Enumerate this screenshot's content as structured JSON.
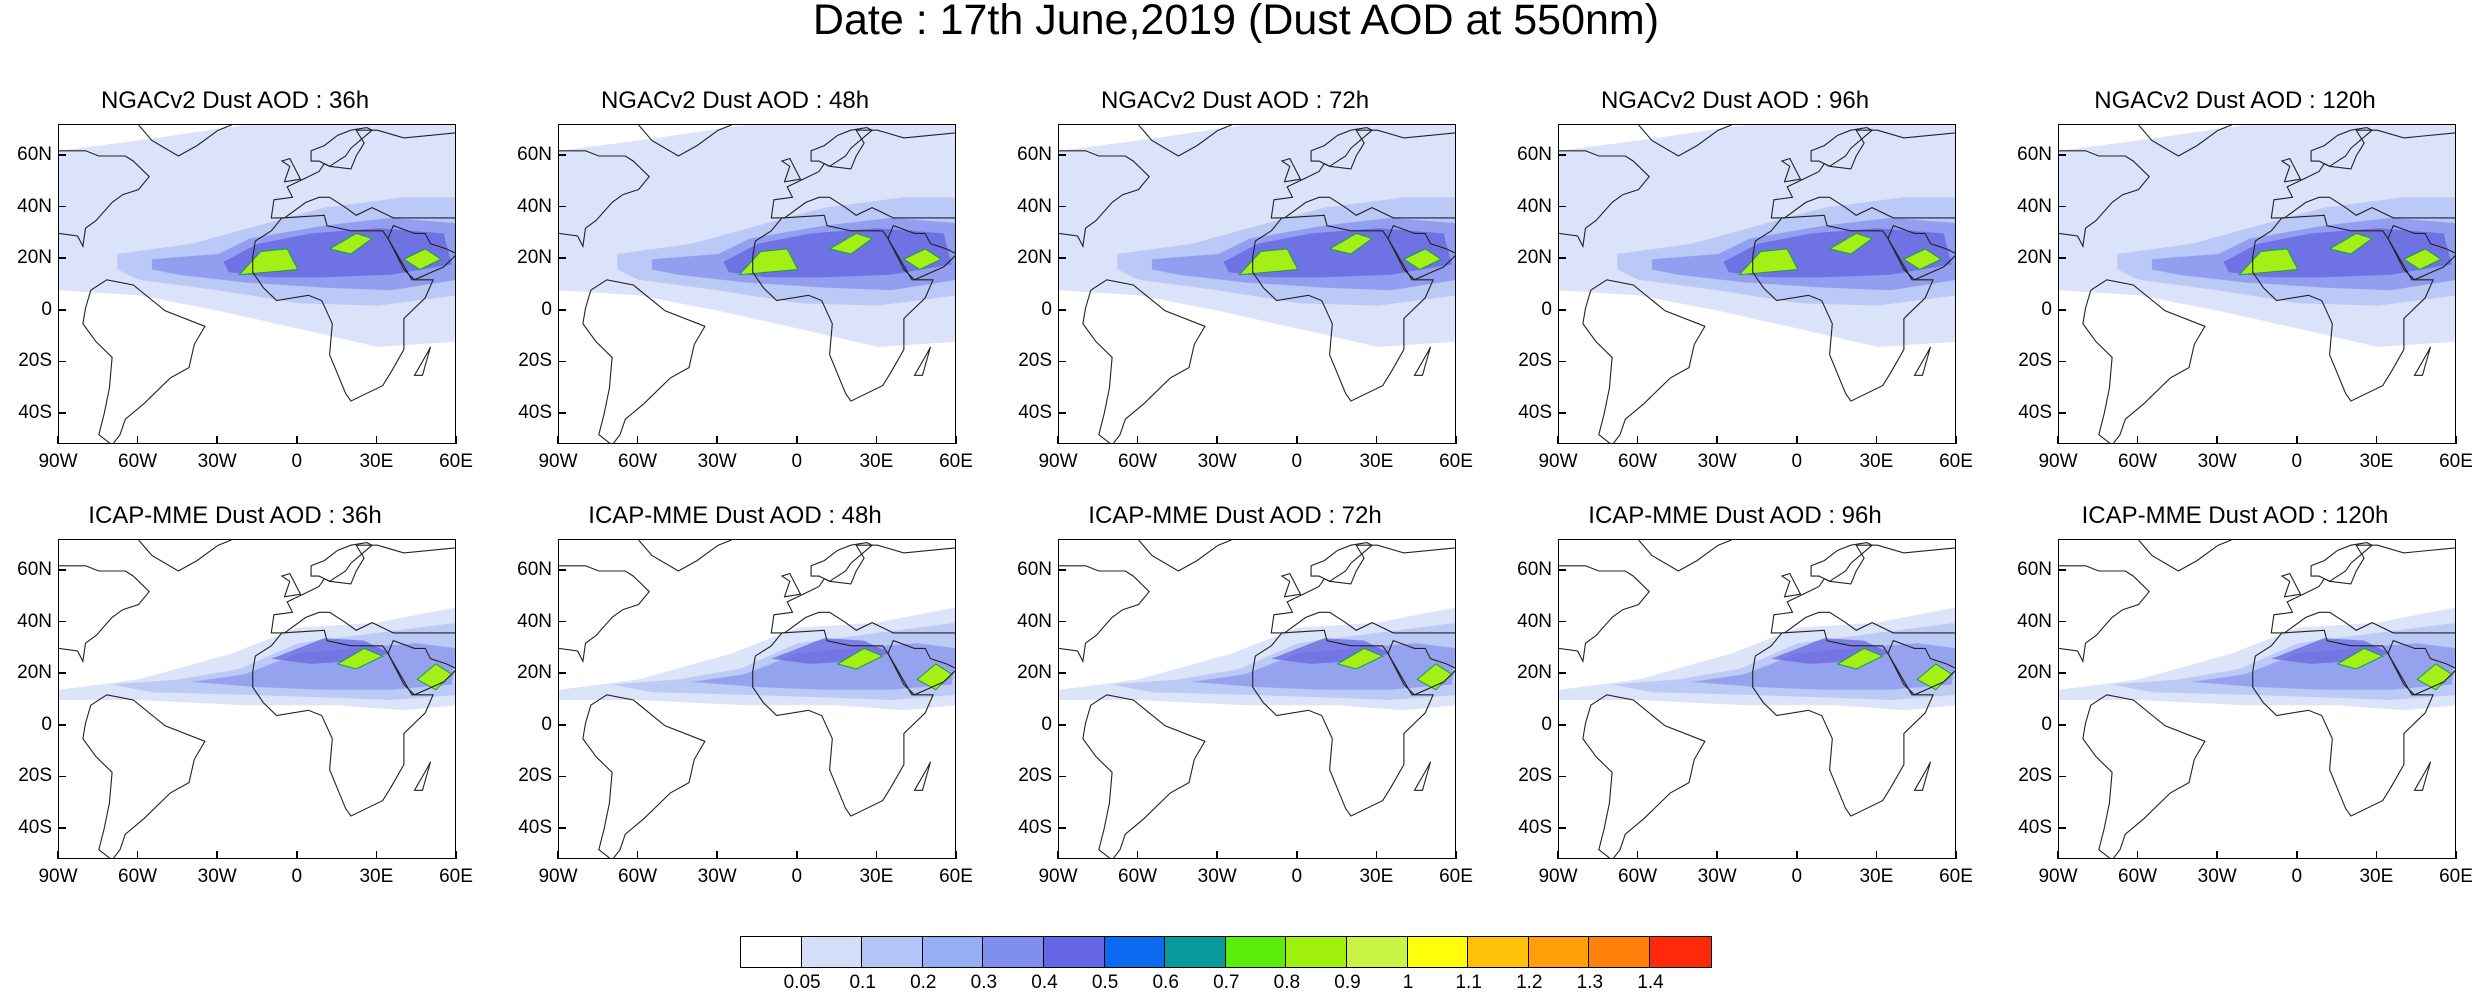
{
  "title": "Date : 17th June,2019 (Dust AOD at 550nm)",
  "lat_labels": [
    "60N",
    "40N",
    "20N",
    "0",
    "20S",
    "40S"
  ],
  "lon_labels": [
    "90W",
    "60W",
    "30W",
    "0",
    "30E",
    "60E"
  ],
  "panels": [
    {
      "title": "NGACv2 Dust AOD : 36h",
      "model": "NGACv2",
      "lead": "36h"
    },
    {
      "title": "NGACv2 Dust AOD : 48h",
      "model": "NGACv2",
      "lead": "48h"
    },
    {
      "title": "NGACv2 Dust AOD : 72h",
      "model": "NGACv2",
      "lead": "72h"
    },
    {
      "title": "NGACv2 Dust AOD : 96h",
      "model": "NGACv2",
      "lead": "96h"
    },
    {
      "title": "NGACv2 Dust AOD : 120h",
      "model": "NGACv2",
      "lead": "120h"
    },
    {
      "title": "ICAP-MME Dust AOD : 36h",
      "model": "ICAP-MME",
      "lead": "36h"
    },
    {
      "title": "ICAP-MME Dust AOD : 48h",
      "model": "ICAP-MME",
      "lead": "48h"
    },
    {
      "title": "ICAP-MME Dust AOD : 72h",
      "model": "ICAP-MME",
      "lead": "72h"
    },
    {
      "title": "ICAP-MME Dust AOD : 96h",
      "model": "ICAP-MME",
      "lead": "96h"
    },
    {
      "title": "ICAP-MME Dust AOD : 120h",
      "model": "ICAP-MME",
      "lead": "120h"
    }
  ],
  "colorbar": {
    "labels": [
      "0.05",
      "0.1",
      "0.2",
      "0.3",
      "0.4",
      "0.5",
      "0.6",
      "0.7",
      "0.8",
      "0.9",
      "1",
      "1.1",
      "1.2",
      "1.3",
      "1.4"
    ],
    "colors": [
      "#ffffff",
      "#d4def9",
      "#b4c4f6",
      "#96aef5",
      "#7f8ff0",
      "#6565e6",
      "#0a6af0",
      "#089a9a",
      "#5cee0a",
      "#a0f00e",
      "#c8f446",
      "#ffff0a",
      "#ffc00a",
      "#ffa00a",
      "#ff800a",
      "#ff2a0a"
    ]
  },
  "map_style": {
    "haze": "#d8e1fa",
    "light": "#b6c5f4",
    "mid": "#8b98ee",
    "dark": "#6766df",
    "hot": "#a3ef16",
    "coast": "#222222"
  }
}
